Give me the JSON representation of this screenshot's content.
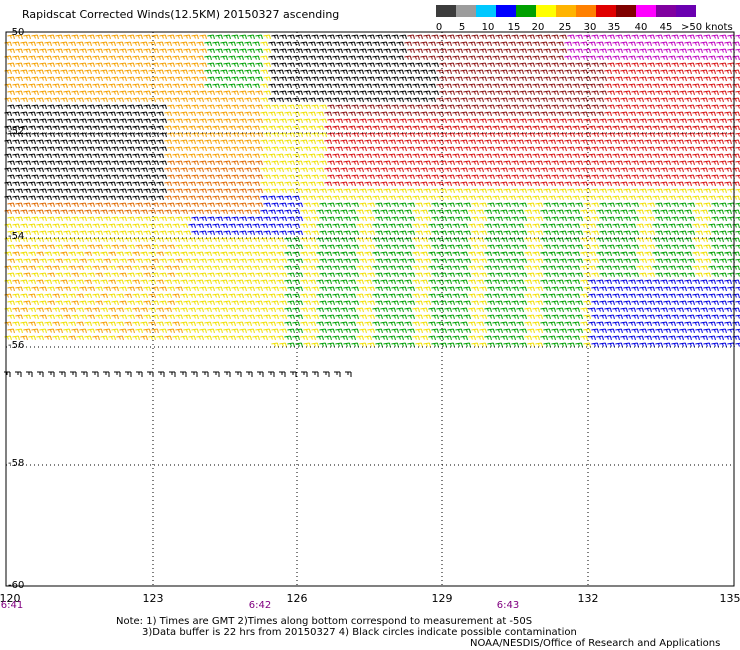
{
  "title": "Rapidscat Corrected Winds(12.5KM) 20150327 ascending",
  "legend": {
    "labels": [
      "0",
      "5",
      "10",
      "15",
      "20",
      "25",
      "30",
      "35",
      "40",
      "45",
      ">50 knots"
    ],
    "colors": [
      "#3c3c3c",
      "#9c9c9c",
      "#00c8ff",
      "#0000ff",
      "#00a000",
      "#ffff00",
      "#ffb400",
      "#ff8000",
      "#e00000",
      "#800000",
      "#ff00ff",
      "#8000a0",
      "#6a00b0"
    ]
  },
  "x_axis": {
    "labels": [
      "120",
      "123",
      "126",
      "129",
      "132",
      "135"
    ]
  },
  "y_axis": {
    "labels": [
      "-50",
      "-52",
      "-54",
      "-56",
      "-58",
      "-60"
    ]
  },
  "times": [
    "6:41",
    "6:42",
    "6:43"
  ],
  "notes": {
    "line1": "Note: 1) Times are GMT 2)Times along bottom correspond to measurement at -50S",
    "line2": "3)Data buffer is 22 hrs from 20150327 4) Black circles indicate possible contamination",
    "credit": "NOAA/NESDIS/Office of Research and Applications"
  }
}
